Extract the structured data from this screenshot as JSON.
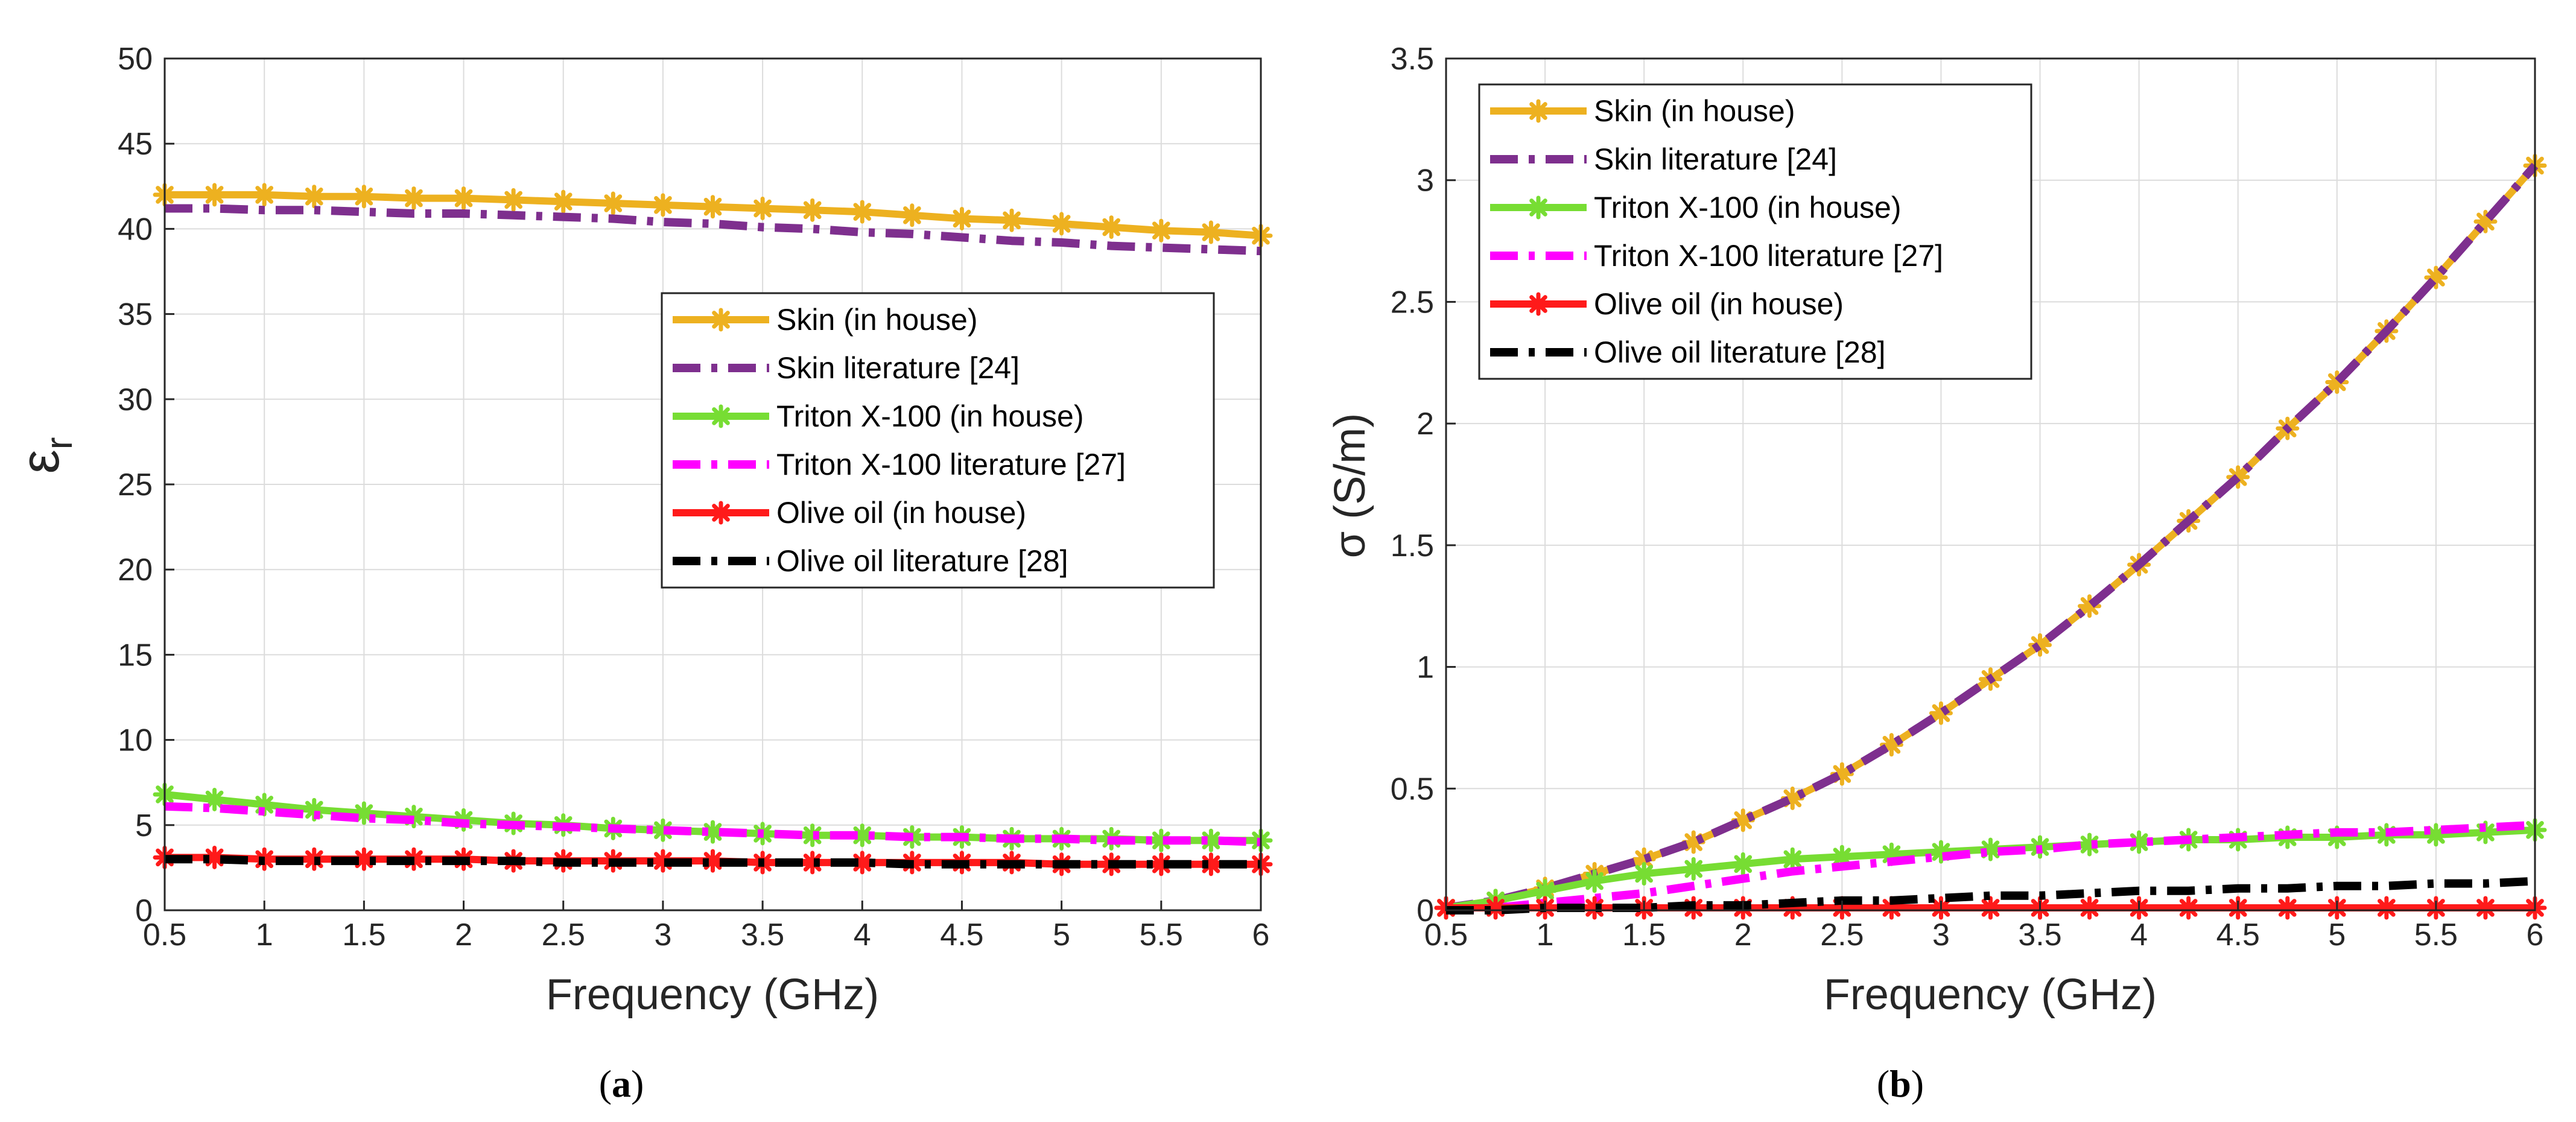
{
  "chart_data": [
    {
      "id": "a",
      "type": "line",
      "caption_letter": "a",
      "xlabel": "Frequency (GHz)",
      "ylabel": "ε",
      "ylabel_sub": "r",
      "xlim": [
        0.5,
        6
      ],
      "ylim": [
        0,
        50
      ],
      "grid": true,
      "legend_position": "center-right",
      "xticks": [
        0.5,
        1,
        1.5,
        2,
        2.5,
        3,
        3.5,
        4,
        4.5,
        5,
        5.5,
        6
      ],
      "xtick_labels": [
        "0.5",
        "1",
        "1.5",
        "2",
        "2.5",
        "3",
        "3.5",
        "4",
        "4.5",
        "5",
        "5.5",
        "6"
      ],
      "yticks": [
        0,
        5,
        10,
        15,
        20,
        25,
        30,
        35,
        40,
        45,
        50
      ],
      "ytick_labels": [
        "0",
        "5",
        "10",
        "15",
        "20",
        "25",
        "30",
        "35",
        "40",
        "45",
        "50"
      ],
      "x": [
        0.5,
        0.75,
        1.0,
        1.25,
        1.5,
        1.75,
        2.0,
        2.25,
        2.5,
        2.75,
        3.0,
        3.25,
        3.5,
        3.75,
        4.0,
        4.25,
        4.5,
        4.75,
        5.0,
        5.25,
        5.5,
        5.75,
        6.0
      ],
      "series": [
        {
          "name": "Skin (in house)",
          "style": "solid-marker",
          "color": "#EDB120",
          "values": [
            42.0,
            42.0,
            42.0,
            41.9,
            41.9,
            41.8,
            41.8,
            41.7,
            41.6,
            41.5,
            41.4,
            41.3,
            41.2,
            41.1,
            41.0,
            40.8,
            40.6,
            40.5,
            40.3,
            40.1,
            39.9,
            39.8,
            39.6
          ]
        },
        {
          "name": "Skin literature [24]",
          "style": "dashed",
          "color": "#7E2F8E",
          "values": [
            41.2,
            41.2,
            41.1,
            41.1,
            41.0,
            40.9,
            40.9,
            40.8,
            40.7,
            40.6,
            40.4,
            40.3,
            40.1,
            40.0,
            39.8,
            39.7,
            39.5,
            39.3,
            39.2,
            39.0,
            38.9,
            38.8,
            38.7
          ]
        },
        {
          "name": "Triton X-100 (in house)",
          "style": "solid-marker",
          "color": "#77DD33",
          "values": [
            6.8,
            6.5,
            6.2,
            5.9,
            5.7,
            5.5,
            5.3,
            5.1,
            5.0,
            4.8,
            4.7,
            4.6,
            4.5,
            4.4,
            4.4,
            4.3,
            4.3,
            4.2,
            4.2,
            4.2,
            4.1,
            4.1,
            4.1
          ]
        },
        {
          "name": "Triton X-100 literature [27]",
          "style": "dashed",
          "color": "#FF00FF",
          "values": [
            6.1,
            6.0,
            5.8,
            5.6,
            5.4,
            5.3,
            5.1,
            5.0,
            4.9,
            4.8,
            4.7,
            4.6,
            4.5,
            4.4,
            4.4,
            4.3,
            4.3,
            4.2,
            4.2,
            4.1,
            4.1,
            4.1,
            4.0
          ]
        },
        {
          "name": "Olive oil (in house)",
          "style": "solid-marker",
          "color": "#FF1A1A",
          "values": [
            3.1,
            3.1,
            3.0,
            3.0,
            3.0,
            3.0,
            3.0,
            2.9,
            2.9,
            2.9,
            2.9,
            2.9,
            2.8,
            2.8,
            2.8,
            2.8,
            2.8,
            2.8,
            2.7,
            2.7,
            2.7,
            2.7,
            2.7
          ]
        },
        {
          "name": "Olive oil literature [28]",
          "style": "dashed",
          "color": "#000000",
          "values": [
            3.0,
            3.0,
            2.9,
            2.9,
            2.9,
            2.9,
            2.9,
            2.9,
            2.8,
            2.8,
            2.8,
            2.8,
            2.8,
            2.8,
            2.8,
            2.7,
            2.7,
            2.7,
            2.7,
            2.7,
            2.7,
            2.7,
            2.7
          ]
        }
      ]
    },
    {
      "id": "b",
      "type": "line",
      "caption_letter": "b",
      "xlabel": "Frequency (GHz)",
      "ylabel": "σ (S/m)",
      "ylabel_sub": "",
      "xlim": [
        0.5,
        6
      ],
      "ylim": [
        0,
        3.5
      ],
      "grid": true,
      "legend_position": "top-left",
      "xticks": [
        0.5,
        1,
        1.5,
        2,
        2.5,
        3,
        3.5,
        4,
        4.5,
        5,
        5.5,
        6
      ],
      "xtick_labels": [
        "0.5",
        "1",
        "1.5",
        "2",
        "2.5",
        "3",
        "3.5",
        "4",
        "4.5",
        "5",
        "5.5",
        "6"
      ],
      "yticks": [
        0,
        0.5,
        1,
        1.5,
        2,
        2.5,
        3,
        3.5
      ],
      "ytick_labels": [
        "0",
        "0.5",
        "1",
        "1.5",
        "2",
        "2.5",
        "3",
        "3.5"
      ],
      "x": [
        0.5,
        0.75,
        1.0,
        1.25,
        1.5,
        1.75,
        2.0,
        2.25,
        2.5,
        2.75,
        3.0,
        3.25,
        3.5,
        3.75,
        4.0,
        4.25,
        4.5,
        4.75,
        5.0,
        5.25,
        5.5,
        5.75,
        6.0
      ],
      "series": [
        {
          "name": "Skin (in house)",
          "style": "solid-marker",
          "color": "#EDB120",
          "values": [
            0.01,
            0.04,
            0.09,
            0.15,
            0.21,
            0.28,
            0.37,
            0.46,
            0.56,
            0.68,
            0.81,
            0.95,
            1.09,
            1.25,
            1.42,
            1.6,
            1.78,
            1.98,
            2.17,
            2.38,
            2.6,
            2.83,
            3.06
          ]
        },
        {
          "name": "Skin literature [24]",
          "style": "dashed",
          "color": "#7E2F8E",
          "values": [
            0.01,
            0.04,
            0.09,
            0.15,
            0.21,
            0.28,
            0.37,
            0.46,
            0.56,
            0.68,
            0.81,
            0.95,
            1.09,
            1.25,
            1.42,
            1.6,
            1.78,
            1.98,
            2.17,
            2.38,
            2.6,
            2.83,
            3.06
          ]
        },
        {
          "name": "Triton X-100 (in house)",
          "style": "solid-marker",
          "color": "#77DD33",
          "values": [
            0.01,
            0.04,
            0.08,
            0.12,
            0.15,
            0.17,
            0.19,
            0.21,
            0.22,
            0.23,
            0.24,
            0.25,
            0.26,
            0.27,
            0.28,
            0.29,
            0.29,
            0.3,
            0.3,
            0.31,
            0.31,
            0.32,
            0.33
          ]
        },
        {
          "name": "Triton X-100 literature [27]",
          "style": "dashed",
          "color": "#FF00FF",
          "values": [
            0.0,
            0.01,
            0.03,
            0.05,
            0.07,
            0.1,
            0.13,
            0.16,
            0.18,
            0.2,
            0.22,
            0.24,
            0.25,
            0.27,
            0.28,
            0.29,
            0.3,
            0.31,
            0.32,
            0.32,
            0.33,
            0.34,
            0.35
          ]
        },
        {
          "name": "Olive oil (in house)",
          "style": "solid-marker",
          "color": "#FF1A1A",
          "values": [
            0.01,
            0.01,
            0.01,
            0.01,
            0.01,
            0.01,
            0.01,
            0.01,
            0.01,
            0.01,
            0.01,
            0.01,
            0.01,
            0.01,
            0.01,
            0.01,
            0.01,
            0.01,
            0.01,
            0.01,
            0.01,
            0.01,
            0.01
          ]
        },
        {
          "name": "Olive oil literature [28]",
          "style": "dashed",
          "color": "#000000",
          "values": [
            0.0,
            0.0,
            0.01,
            0.01,
            0.01,
            0.02,
            0.02,
            0.03,
            0.04,
            0.04,
            0.05,
            0.06,
            0.06,
            0.07,
            0.08,
            0.08,
            0.09,
            0.09,
            0.1,
            0.1,
            0.11,
            0.11,
            0.12
          ]
        }
      ]
    }
  ]
}
